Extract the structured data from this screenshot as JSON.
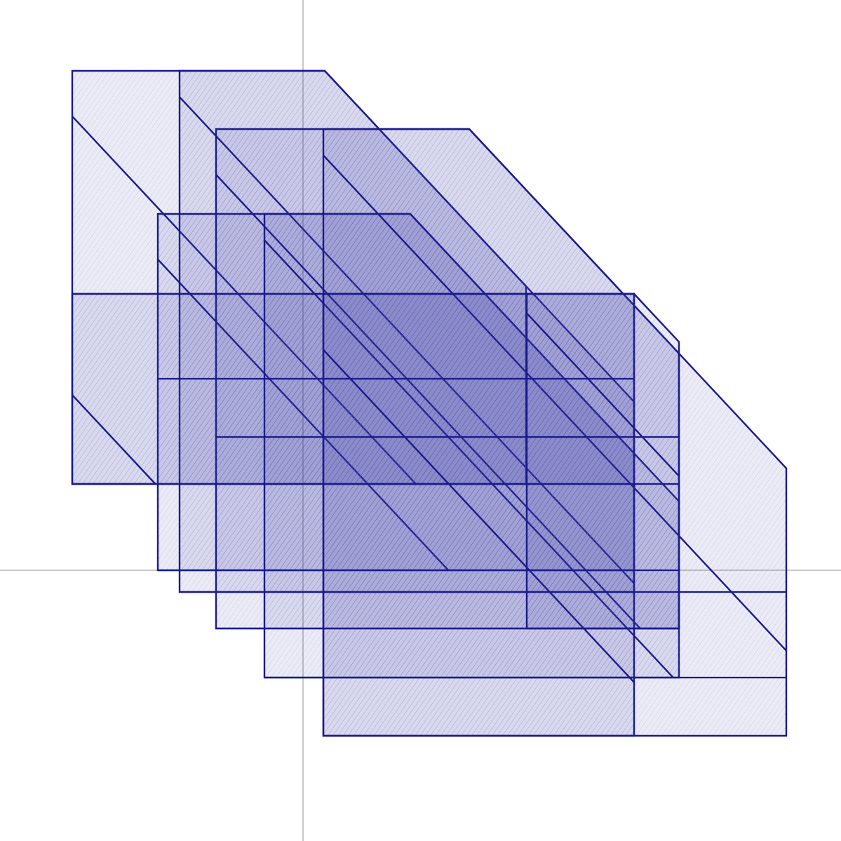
{
  "diagram": {
    "kind": "overlapping-hatched-polygons",
    "axes": {
      "visible": true,
      "color": "#c8c8c8"
    },
    "fill_pattern": "dense-hatching",
    "colors": {
      "edge": "#1a1a8c",
      "fill": "#3a3aa8",
      "background": "#ffffff"
    },
    "shape_count": 9
  }
}
